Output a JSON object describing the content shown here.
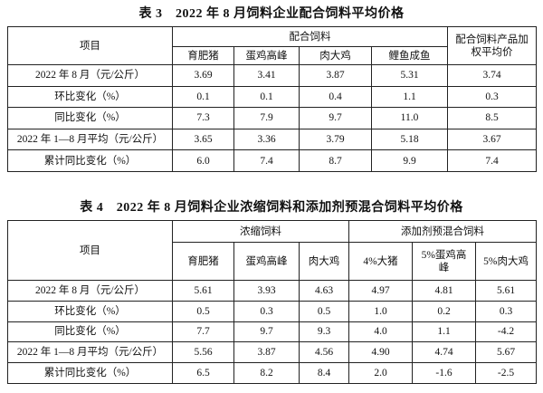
{
  "table3": {
    "title": "表 3　2022 年 8 月饲料企业配合饲料平均价格",
    "header": {
      "item": "项目",
      "groups": [
        {
          "label": "配合饲料",
          "columns": [
            "育肥猪",
            "蛋鸡高峰",
            "肉大鸡",
            "鲤鱼成鱼"
          ]
        }
      ],
      "last": "配合饲料产品加权平均价"
    },
    "rows": [
      [
        "2022 年 8 月（元/公斤）",
        "3.69",
        "3.41",
        "3.87",
        "5.31",
        "3.74"
      ],
      [
        "环比变化（%）",
        "0.1",
        "0.1",
        "0.4",
        "1.1",
        "0.3"
      ],
      [
        "同比变化（%）",
        "7.3",
        "7.9",
        "9.7",
        "11.0",
        "8.5"
      ],
      [
        "2022 年 1—8 月平均（元/公斤）",
        "3.65",
        "3.36",
        "3.79",
        "5.18",
        "3.67"
      ],
      [
        "累计同比变化（%）",
        "6.0",
        "7.4",
        "8.7",
        "9.9",
        "7.4"
      ]
    ]
  },
  "table4": {
    "title": "表 4　2022 年 8 月饲料企业浓缩饲料和添加剂预混合饲料平均价格",
    "header": {
      "item": "项目",
      "groups": [
        {
          "label": "浓缩饲料",
          "columns": [
            "育肥猪",
            "蛋鸡高峰",
            "肉大鸡"
          ]
        },
        {
          "label": "添加剂预混合饲料",
          "columns": [
            "4%大猪",
            "5%蛋鸡高峰",
            "5%肉大鸡"
          ]
        }
      ]
    },
    "rows": [
      [
        "2022 年 8 月（元/公斤）",
        "5.61",
        "3.93",
        "4.63",
        "4.97",
        "4.81",
        "5.61"
      ],
      [
        "环比变化（%）",
        "0.5",
        "0.3",
        "0.5",
        "1.0",
        "0.2",
        "0.3"
      ],
      [
        "同比变化（%）",
        "7.7",
        "9.7",
        "9.3",
        "4.0",
        "1.1",
        "-4.2"
      ],
      [
        "2022 年 1—8 月平均（元/公斤）",
        "5.56",
        "3.87",
        "4.56",
        "4.90",
        "4.74",
        "5.67"
      ],
      [
        "累计同比变化（%）",
        "6.5",
        "8.2",
        "8.4",
        "2.0",
        "-1.6",
        "-2.5"
      ]
    ]
  }
}
